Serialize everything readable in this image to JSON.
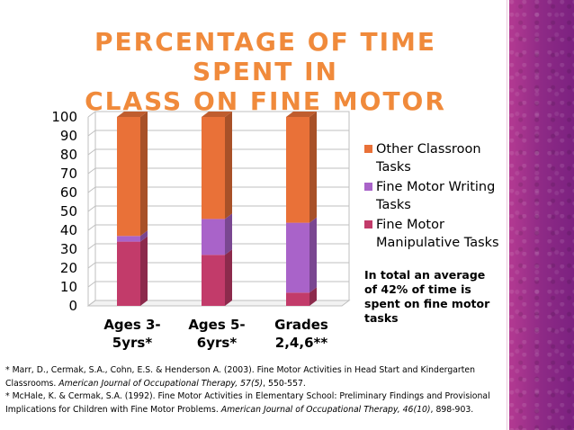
{
  "title_line1": "PERCENTAGE OF TIME SPENT IN",
  "title_line2": "CLASS ON FINE MOTOR TASKS",
  "colors": {
    "title": "#f08a3b",
    "manipulative": "#c23b6a",
    "writing": "#a963c9",
    "other": "#e97138",
    "accent_band": "#8e2a86"
  },
  "chart_data": {
    "type": "bar",
    "stacked": true,
    "three_d": true,
    "categories": [
      "Ages 3-5yrs*",
      "Ages 5-6yrs*",
      "Grades 2,4,6**"
    ],
    "category_lines": [
      [
        "Ages 3-",
        "5yrs*"
      ],
      [
        "Ages 5-",
        "6yrs*"
      ],
      [
        "Grades",
        "2,4,6**"
      ]
    ],
    "series": [
      {
        "name": "Fine Motor Manipulative Tasks",
        "values": [
          34,
          27,
          7
        ]
      },
      {
        "name": "Fine Motor Writing Tasks",
        "values": [
          3,
          19,
          37
        ]
      },
      {
        "name": "Other Classroon Tasks",
        "values": [
          63,
          54,
          56
        ]
      }
    ],
    "ylim": [
      0,
      100
    ],
    "yticks": [
      0,
      10,
      20,
      30,
      40,
      50,
      60,
      70,
      80,
      90,
      100
    ],
    "xlabel": "",
    "ylabel": "",
    "grid": true,
    "legend_position": "right"
  },
  "legend": [
    {
      "label": "Other Classroon Tasks",
      "color": "#e97138"
    },
    {
      "label": "Fine Motor Writing Tasks",
      "color": "#a963c9"
    },
    {
      "label": "Fine Motor Manipulative Tasks",
      "color": "#c23b6a"
    }
  ],
  "note": "In total an average of 42% of time is spent on fine motor tasks",
  "references": {
    "ref1_text": "* Marr, D., Cermak, S.A., Cohn, E.S. & Henderson A. (2003). Fine Motor Activities in Head  Start and Kindergarten Classrooms. ",
    "ref1_journal": "American Journal of Occupational Therapy, 57(5)",
    "ref1_pages": ", 550-557.",
    "ref2_text": "* McHale, K. & Cermak, S.A. (1992). Fine Motor Activities in Elementary School: Preliminary Findings and Provisional Implications for Children with Fine Motor Problems. ",
    "ref2_journal": "American Journal of Occupational Therapy, 46(10)",
    "ref2_pages": ", 898-903."
  }
}
